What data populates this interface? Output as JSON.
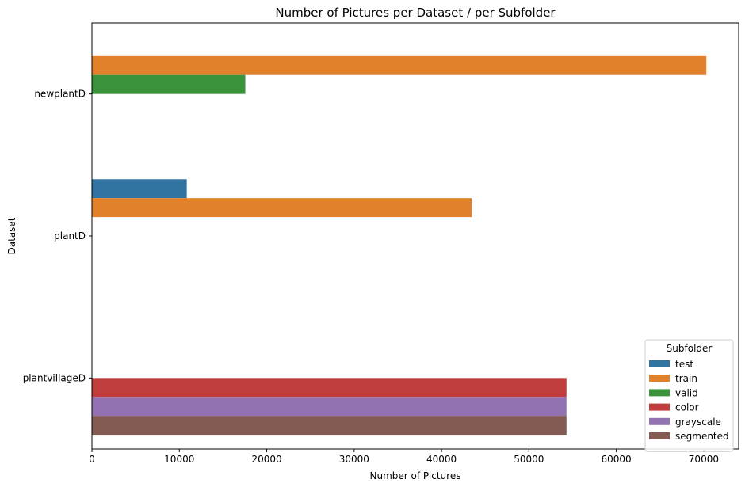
{
  "chart_data": {
    "type": "bar",
    "orientation": "horizontal",
    "title": "Number of Pictures per Dataset / per Subfolder",
    "xlabel": "Number of Pictures",
    "ylabel": "Dataset",
    "xlim": [
      0,
      74000
    ],
    "xticks": [
      0,
      10000,
      20000,
      30000,
      40000,
      50000,
      60000,
      70000
    ],
    "categories": [
      "newplantD",
      "plantD",
      "plantvillageD"
    ],
    "grid": false,
    "legend": {
      "title": "Subfolder",
      "placement": "bottom-right"
    },
    "series": [
      {
        "name": "test",
        "color": "#3274a1",
        "values": [
          0,
          10850,
          0
        ]
      },
      {
        "name": "train",
        "color": "#e1812c",
        "values": [
          70300,
          43450,
          0
        ]
      },
      {
        "name": "valid",
        "color": "#3a923a",
        "values": [
          17550,
          0,
          0
        ]
      },
      {
        "name": "color",
        "color": "#c03d3e",
        "values": [
          0,
          0,
          54300
        ]
      },
      {
        "name": "grayscale",
        "color": "#9372b2",
        "values": [
          0,
          0,
          54300
        ]
      },
      {
        "name": "segmented",
        "color": "#845b53",
        "values": [
          0,
          0,
          54300
        ]
      }
    ]
  }
}
